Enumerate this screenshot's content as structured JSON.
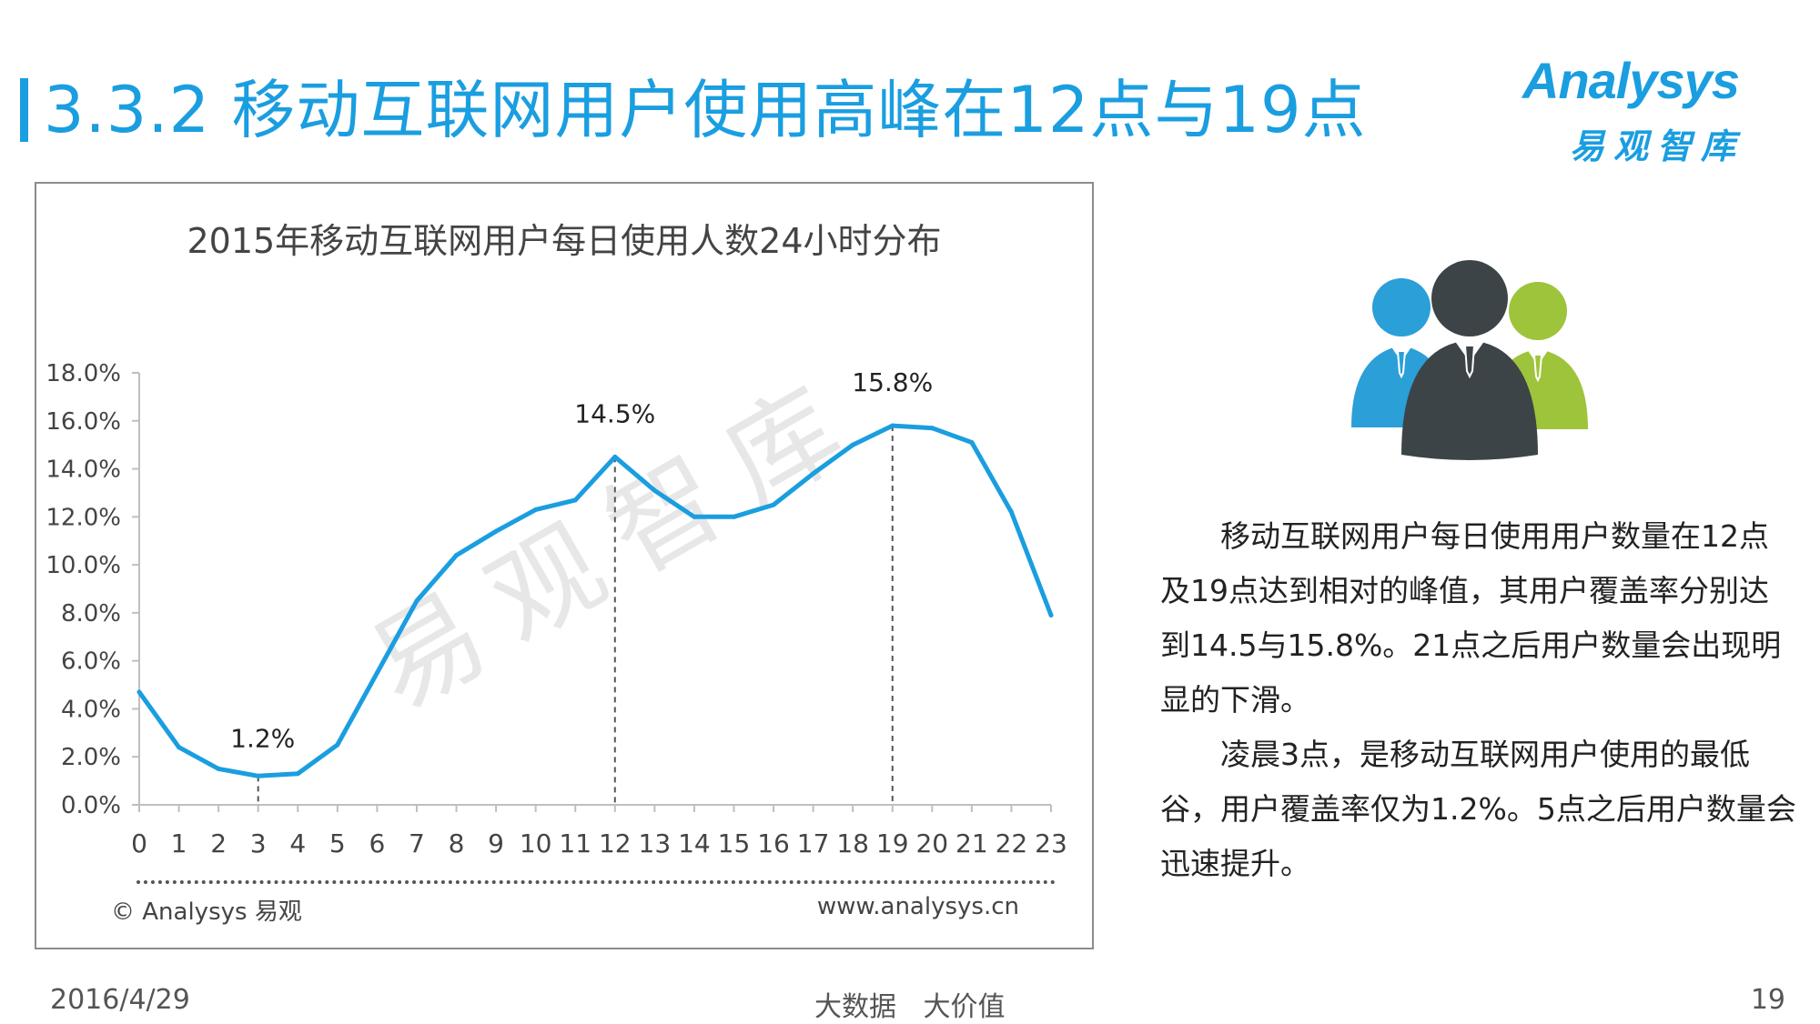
{
  "slide": {
    "title": "3.3.2 移动互联网用户使用高峰在12点与19点",
    "logo_word": "Analysys",
    "logo_cn": "易观智库",
    "watermark": "易观智库",
    "footer_date": "2016/4/29",
    "footer_center": "大数据   大价值",
    "page_number": "19",
    "accent_color": "#1a9ee0"
  },
  "chart_footer": {
    "copyright": "© Analysys 易观",
    "website": "www.analysys.cn"
  },
  "text_panel": {
    "paragraphs": [
      "移动互联网用户每日使用用户数量在12点及19点达到相对的峰值，其用户覆盖率分别达到14.5与15.8%。21点之后用户数量会出现明显的下滑。",
      "凌晨3点，是移动互联网用户使用的最低谷，用户覆盖率仅为1.2%。5点之后用户数量会迅速提升。"
    ],
    "people_colors": [
      "#2a9fd8",
      "#3d4447",
      "#9dc43a"
    ],
    "icon": "people-group-icon"
  },
  "chart_data": {
    "type": "line",
    "title": "2015年移动互联网用户每日使用人数24小时分布",
    "xlabel": "",
    "ylabel": "",
    "x": [
      0,
      1,
      2,
      3,
      4,
      5,
      6,
      7,
      8,
      9,
      10,
      11,
      12,
      13,
      14,
      15,
      16,
      17,
      18,
      19,
      20,
      21,
      22,
      23
    ],
    "x_tick_labels": [
      "0",
      "1",
      "2",
      "3",
      "4",
      "5",
      "6",
      "7",
      "8",
      "9",
      "10",
      "11",
      "12",
      "13",
      "14",
      "15",
      "16",
      "17",
      "18",
      "19",
      "20",
      "21",
      "22",
      "23"
    ],
    "series": [
      {
        "values": [
          4.7,
          2.4,
          1.5,
          1.2,
          1.3,
          2.5,
          5.5,
          8.5,
          10.4,
          11.4,
          12.3,
          12.7,
          14.5,
          13.1,
          12.0,
          12.0,
          12.5,
          13.8,
          15.0,
          15.8,
          15.7,
          15.1,
          12.2,
          7.9
        ],
        "color": "#1a9ee0"
      }
    ],
    "ylim": [
      0,
      18
    ],
    "y_ticks": [
      0,
      2,
      4,
      6,
      8,
      10,
      12,
      14,
      16,
      18
    ],
    "y_tick_labels": [
      "0.0%",
      "2.0%",
      "4.0%",
      "6.0%",
      "8.0%",
      "10.0%",
      "12.0%",
      "14.0%",
      "16.0%",
      "18.0%"
    ],
    "annotations": [
      {
        "x": 3,
        "y": 1.2,
        "label": "1.2%"
      },
      {
        "x": 12,
        "y": 14.5,
        "label": "14.5%"
      },
      {
        "x": 19,
        "y": 15.8,
        "label": "15.8%"
      }
    ],
    "grid": false
  }
}
